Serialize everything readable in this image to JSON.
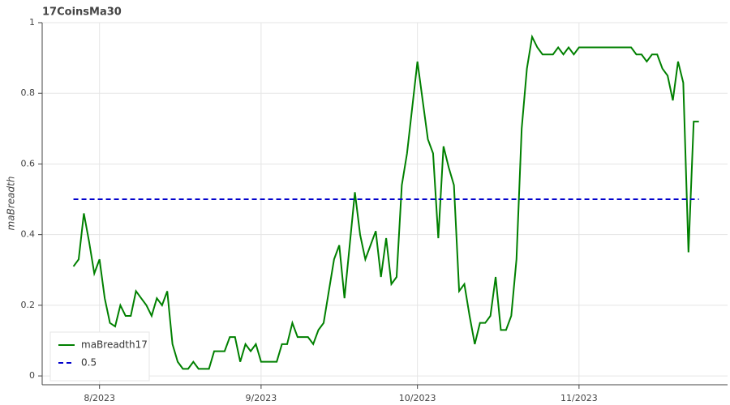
{
  "chart_data": {
    "type": "line",
    "title": "17CoinsMa30",
    "ylabel": "maBreadth",
    "ylim": [
      -0.025,
      1
    ],
    "yticks": [
      0,
      0.2,
      0.4,
      0.6,
      0.8,
      1
    ],
    "xlim": [
      -6,
      125.5
    ],
    "xticks": [
      {
        "value": 5,
        "label": "8/2023"
      },
      {
        "value": 36,
        "label": "9/2023"
      },
      {
        "value": 66,
        "label": "10/2023"
      },
      {
        "value": 97,
        "label": "11/2023"
      }
    ],
    "grid": true,
    "legend": "bottom-left",
    "series": [
      {
        "name": "maBreadth17",
        "color": "#008000",
        "values": [
          0.31,
          0.33,
          0.46,
          0.38,
          0.29,
          0.33,
          0.22,
          0.15,
          0.14,
          0.2,
          0.17,
          0.17,
          0.24,
          0.22,
          0.2,
          0.17,
          0.22,
          0.2,
          0.24,
          0.09,
          0.04,
          0.02,
          0.02,
          0.04,
          0.02,
          0.02,
          0.02,
          0.07,
          0.07,
          0.07,
          0.11,
          0.11,
          0.04,
          0.09,
          0.07,
          0.09,
          0.04,
          0.04,
          0.04,
          0.04,
          0.09,
          0.09,
          0.15,
          0.11,
          0.11,
          0.11,
          0.09,
          0.13,
          0.15,
          0.24,
          0.33,
          0.37,
          0.22,
          0.37,
          0.52,
          0.4,
          0.33,
          0.37,
          0.41,
          0.28,
          0.39,
          0.26,
          0.28,
          0.54,
          0.63,
          0.76,
          0.89,
          0.78,
          0.67,
          0.63,
          0.39,
          0.65,
          0.59,
          0.54,
          0.24,
          0.26,
          0.17,
          0.09,
          0.15,
          0.15,
          0.17,
          0.28,
          0.13,
          0.13,
          0.17,
          0.33,
          0.7,
          0.87,
          0.96,
          0.93,
          0.91,
          0.91,
          0.91,
          0.93,
          0.91,
          0.93,
          0.91,
          0.93,
          0.93,
          0.93,
          0.93,
          0.93,
          0.93,
          0.93,
          0.93,
          0.93,
          0.93,
          0.93,
          0.91,
          0.91,
          0.89,
          0.91,
          0.91,
          0.87,
          0.85,
          0.78,
          0.89,
          0.83,
          0.35,
          0.72,
          0.72
        ]
      }
    ],
    "hline": {
      "name": "0.5",
      "value": 0.5,
      "color": "#0000cc"
    }
  }
}
